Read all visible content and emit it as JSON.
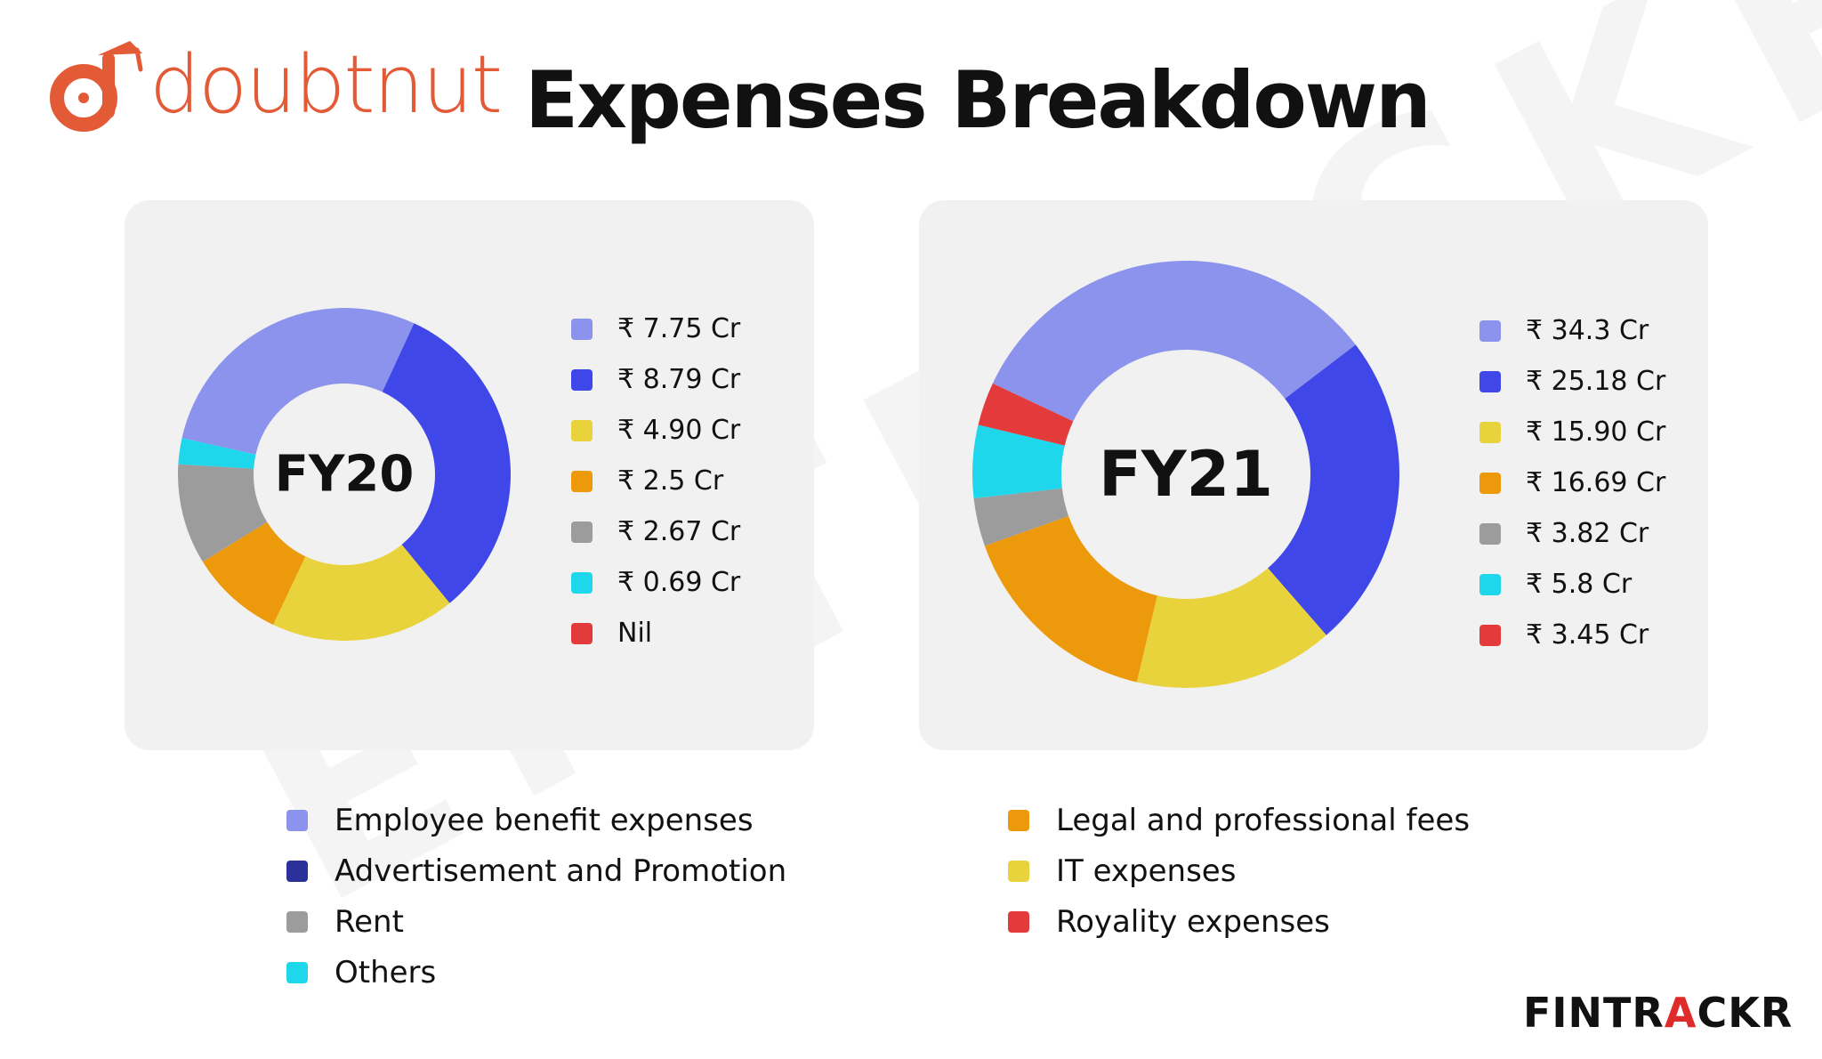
{
  "header": {
    "logo_text": "doubtnut",
    "title": "Expenses Breakdown"
  },
  "watermark": "ENTRACKR",
  "brand": {
    "prefix": "FINTR",
    "accent": "A",
    "suffix": "CKR"
  },
  "colors": {
    "employee": "#8b93ec",
    "advertisement": "#3f47e8",
    "it": "#e9d33c",
    "legal": "#ec9a0c",
    "rent": "#9c9c9c",
    "others": "#1fd7ea",
    "royalty": "#e33b3b",
    "accent": "#e35a36"
  },
  "legend": {
    "left": [
      {
        "label": "Employee benefit expenses",
        "color": "#8b93ec"
      },
      {
        "label": "Advertisement and Promotion",
        "color": "#2a3199"
      },
      {
        "label": "Rent",
        "color": "#9c9c9c"
      },
      {
        "label": "Others",
        "color": "#1fd7ea"
      }
    ],
    "right": [
      {
        "label": "Legal and professional fees",
        "color": "#ec9a0c"
      },
      {
        "label": "IT expenses",
        "color": "#e9d33c"
      },
      {
        "label": "Royality expenses",
        "color": "#e33b3b"
      }
    ]
  },
  "chart_data": [
    {
      "type": "pie",
      "title": "FY20",
      "categories": [
        "Employee benefit expenses",
        "Advertisement and Promotion",
        "IT expenses",
        "Legal and professional fees",
        "Rent",
        "Others",
        "Royality expenses"
      ],
      "values": [
        7.75,
        8.79,
        4.9,
        2.5,
        2.67,
        0.69,
        0
      ],
      "value_labels": [
        "₹ 7.75 Cr",
        "₹ 8.79 Cr",
        "₹ 4.90 Cr",
        "₹ 2.5 Cr",
        "₹ 2.67 Cr",
        "₹ 0.69 Cr",
        "Nil"
      ],
      "colors": [
        "#8b93ec",
        "#3f47e8",
        "#e9d33c",
        "#ec9a0c",
        "#9c9c9c",
        "#1fd7ea",
        "#e33b3b"
      ],
      "unit": "₹ Cr",
      "style": "donut"
    },
    {
      "type": "pie",
      "title": "FY21",
      "categories": [
        "Employee benefit expenses",
        "Advertisement and Promotion",
        "IT expenses",
        "Legal and professional fees",
        "Rent",
        "Others",
        "Royality expenses"
      ],
      "values": [
        34.3,
        25.18,
        15.9,
        16.69,
        3.82,
        5.8,
        3.45
      ],
      "value_labels": [
        "₹ 34.3 Cr",
        "₹ 25.18 Cr",
        "₹ 15.90 Cr",
        "₹ 16.69 Cr",
        "₹ 3.82 Cr",
        "₹ 5.8 Cr",
        "₹ 3.45 Cr"
      ],
      "colors": [
        "#8b93ec",
        "#3f47e8",
        "#e9d33c",
        "#ec9a0c",
        "#9c9c9c",
        "#1fd7ea",
        "#e33b3b"
      ],
      "unit": "₹ Cr",
      "style": "donut"
    }
  ]
}
